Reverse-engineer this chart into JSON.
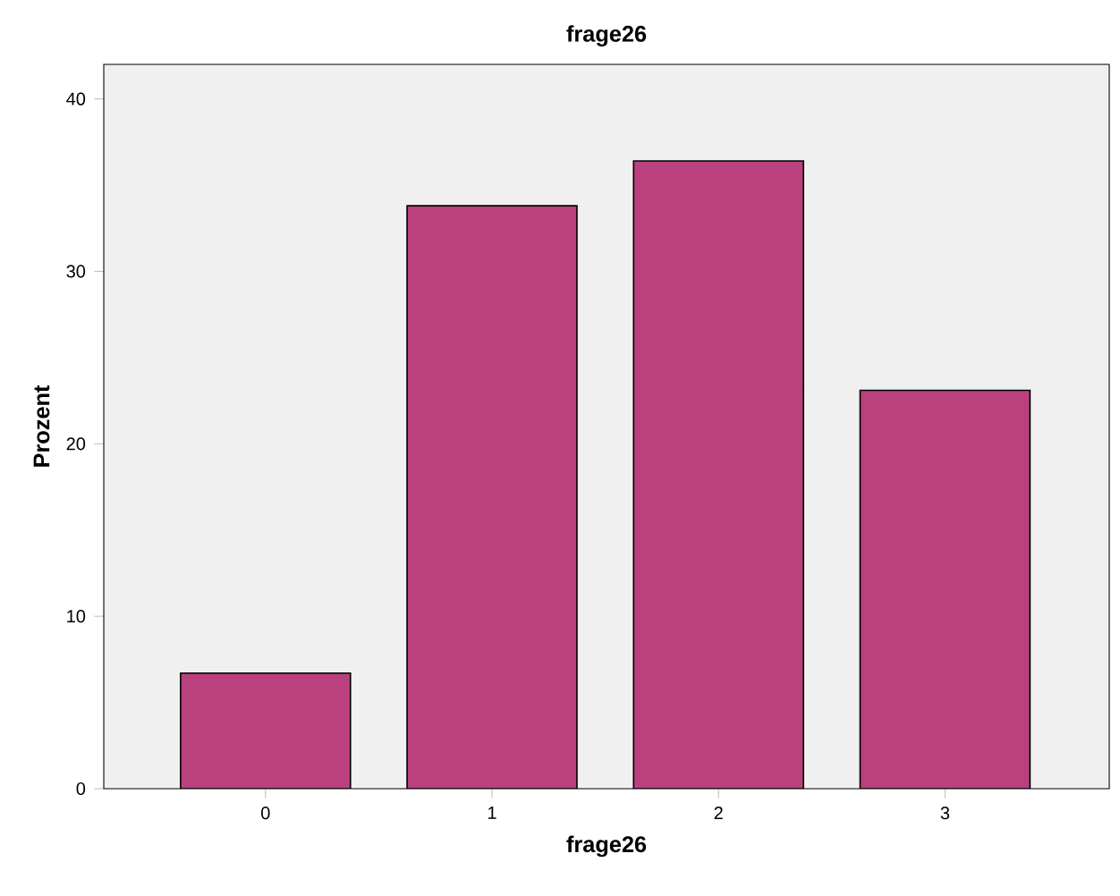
{
  "chart_data": {
    "type": "bar",
    "title": "frage26",
    "xlabel": "frage26",
    "ylabel": "Prozent",
    "categories": [
      "0",
      "1",
      "2",
      "3"
    ],
    "values": [
      6.7,
      33.8,
      36.4,
      23.1
    ],
    "color": "#ba407e",
    "ylim": [
      0,
      42
    ],
    "yticks": [
      0,
      10,
      20,
      30,
      40
    ]
  }
}
